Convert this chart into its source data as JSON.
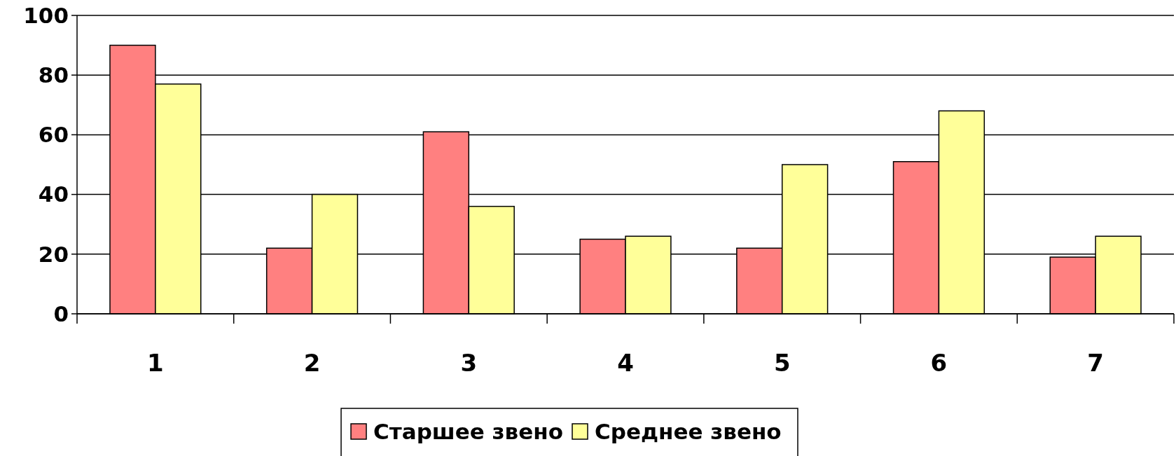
{
  "chart_data": {
    "type": "bar",
    "categories": [
      "1",
      "2",
      "3",
      "4",
      "5",
      "6",
      "7"
    ],
    "series": [
      {
        "name": "Старшее звено",
        "color": "#ff8080",
        "values": [
          90,
          22,
          61,
          25,
          22,
          51,
          19
        ]
      },
      {
        "name": "Среднее звено",
        "color": "#ffff99",
        "values": [
          77,
          40,
          36,
          26,
          50,
          68,
          26
        ]
      }
    ],
    "ylim": [
      0,
      100
    ],
    "yticks": [
      0,
      20,
      40,
      60,
      80,
      100
    ],
    "grid": "y",
    "legend": "bottom"
  }
}
